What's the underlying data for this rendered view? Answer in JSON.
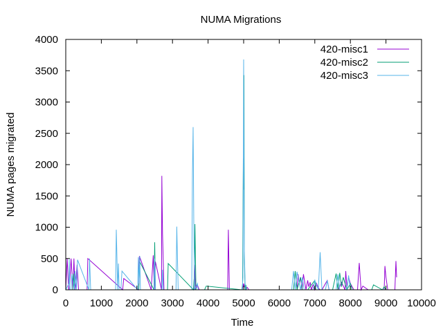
{
  "chart_data": {
    "type": "line",
    "title": "NUMA Migrations",
    "xlabel": "Time",
    "ylabel": "NUMA pages migrated",
    "xlim": [
      0,
      10000
    ],
    "ylim": [
      0,
      4000
    ],
    "xticks": [
      0,
      1000,
      2000,
      3000,
      4000,
      5000,
      6000,
      7000,
      8000,
      9000,
      10000
    ],
    "yticks": [
      0,
      500,
      1000,
      1500,
      2000,
      2500,
      3000,
      3500,
      4000
    ],
    "grid": false,
    "legend_position": "top-right",
    "series": [
      {
        "name": "420-misc1",
        "color": "#9400d3",
        "x": [
          0,
          40,
          60,
          80,
          100,
          150,
          200,
          230,
          260,
          280,
          320,
          360,
          600,
          620,
          1600,
          1630,
          2050,
          2070,
          2400,
          2460,
          2490,
          2520,
          2690,
          2700,
          2720,
          2760,
          3600,
          3620,
          3650,
          3700,
          3750,
          3800,
          4550,
          4560,
          4570,
          4600,
          4650,
          4960,
          5000,
          5020,
          5060,
          5100,
          5150,
          5200,
          6500,
          6530,
          6560,
          6600,
          6640,
          6680,
          6750,
          6800,
          6830,
          6870,
          6900,
          6950,
          7000,
          7050,
          7100,
          7150,
          7200,
          7350,
          7400,
          7650,
          7700,
          7750,
          7850,
          7870,
          7900,
          7950,
          8000,
          8100,
          8200,
          8250,
          8300,
          8350,
          8500,
          8950,
          8970,
          9000,
          9050,
          9250,
          9280,
          9300
        ],
        "y": [
          0,
          500,
          250,
          0,
          0,
          500,
          0,
          500,
          0,
          100,
          400,
          0,
          0,
          500,
          0,
          180,
          0,
          540,
          0,
          550,
          0,
          450,
          0,
          1820,
          900,
          0,
          0,
          400,
          0,
          80,
          0,
          0,
          0,
          480,
          960,
          0,
          0,
          0,
          100,
          60,
          0,
          40,
          0,
          0,
          0,
          250,
          100,
          200,
          0,
          250,
          0,
          150,
          50,
          120,
          0,
          80,
          0,
          100,
          30,
          0,
          0,
          150,
          0,
          0,
          50,
          120,
          0,
          300,
          50,
          200,
          100,
          0,
          0,
          430,
          0,
          60,
          0,
          0,
          380,
          200,
          0,
          0,
          460,
          200
        ]
      },
      {
        "name": "420-misc2",
        "color": "#009e73",
        "x": [
          0,
          200,
          220,
          250,
          2050,
          2080,
          2480,
          2500,
          2520,
          2560,
          2860,
          2880,
          3590,
          3610,
          3630,
          3660,
          3700,
          3900,
          3950,
          4950,
          4970,
          4990,
          5000,
          5010,
          5020,
          5040,
          5060,
          5080,
          5100,
          6400,
          6450,
          6500,
          6600,
          6650,
          6700,
          6800,
          7000,
          7030,
          7100,
          7500,
          7600,
          7650,
          7700,
          7750,
          7800,
          7900,
          8000,
          8050,
          8100,
          8600,
          8650,
          8900,
          8950,
          9000
        ],
        "y": [
          0,
          0,
          260,
          0,
          0,
          450,
          0,
          760,
          0,
          0,
          0,
          420,
          0,
          200,
          1050,
          0,
          0,
          0,
          60,
          0,
          100,
          2100,
          1600,
          3430,
          500,
          0,
          80,
          0,
          0,
          0,
          300,
          0,
          200,
          0,
          0,
          0,
          150,
          0,
          0,
          0,
          260,
          0,
          270,
          50,
          200,
          0,
          100,
          0,
          0,
          0,
          80,
          0,
          50,
          0
        ]
      },
      {
        "name": "420-misc3",
        "color": "#56b4e9",
        "x": [
          0,
          90,
          100,
          110,
          150,
          170,
          250,
          260,
          300,
          330,
          650,
          670,
          700,
          1400,
          1420,
          1440,
          1460,
          1480,
          1500,
          1550,
          1580,
          2020,
          2040,
          2060,
          2080,
          2100,
          2150,
          2480,
          2500,
          2520,
          2700,
          2720,
          2740,
          3100,
          3120,
          3140,
          3160,
          3540,
          3560,
          3580,
          3600,
          3620,
          3700,
          3720,
          4960,
          4980,
          5000,
          5020,
          5040,
          5060,
          5100,
          6350,
          6400,
          6450,
          6500,
          6600,
          6650,
          6700,
          6950,
          7000,
          7100,
          7150,
          7200,
          7300,
          7350,
          7400,
          7600,
          7650,
          7700,
          7900,
          7950,
          8000,
          8050
        ],
        "y": [
          0,
          100,
          490,
          0,
          0,
          250,
          0,
          300,
          0,
          480,
          0,
          500,
          0,
          0,
          960,
          500,
          0,
          420,
          0,
          0,
          300,
          0,
          520,
          100,
          540,
          0,
          0,
          0,
          500,
          0,
          0,
          320,
          0,
          0,
          1010,
          500,
          0,
          0,
          1840,
          2600,
          1000,
          0,
          100,
          0,
          0,
          200,
          3680,
          620,
          100,
          0,
          0,
          0,
          300,
          0,
          290,
          0,
          200,
          0,
          0,
          150,
          0,
          600,
          0,
          0,
          150,
          0,
          0,
          250,
          0,
          0,
          230,
          0,
          0
        ]
      }
    ]
  }
}
